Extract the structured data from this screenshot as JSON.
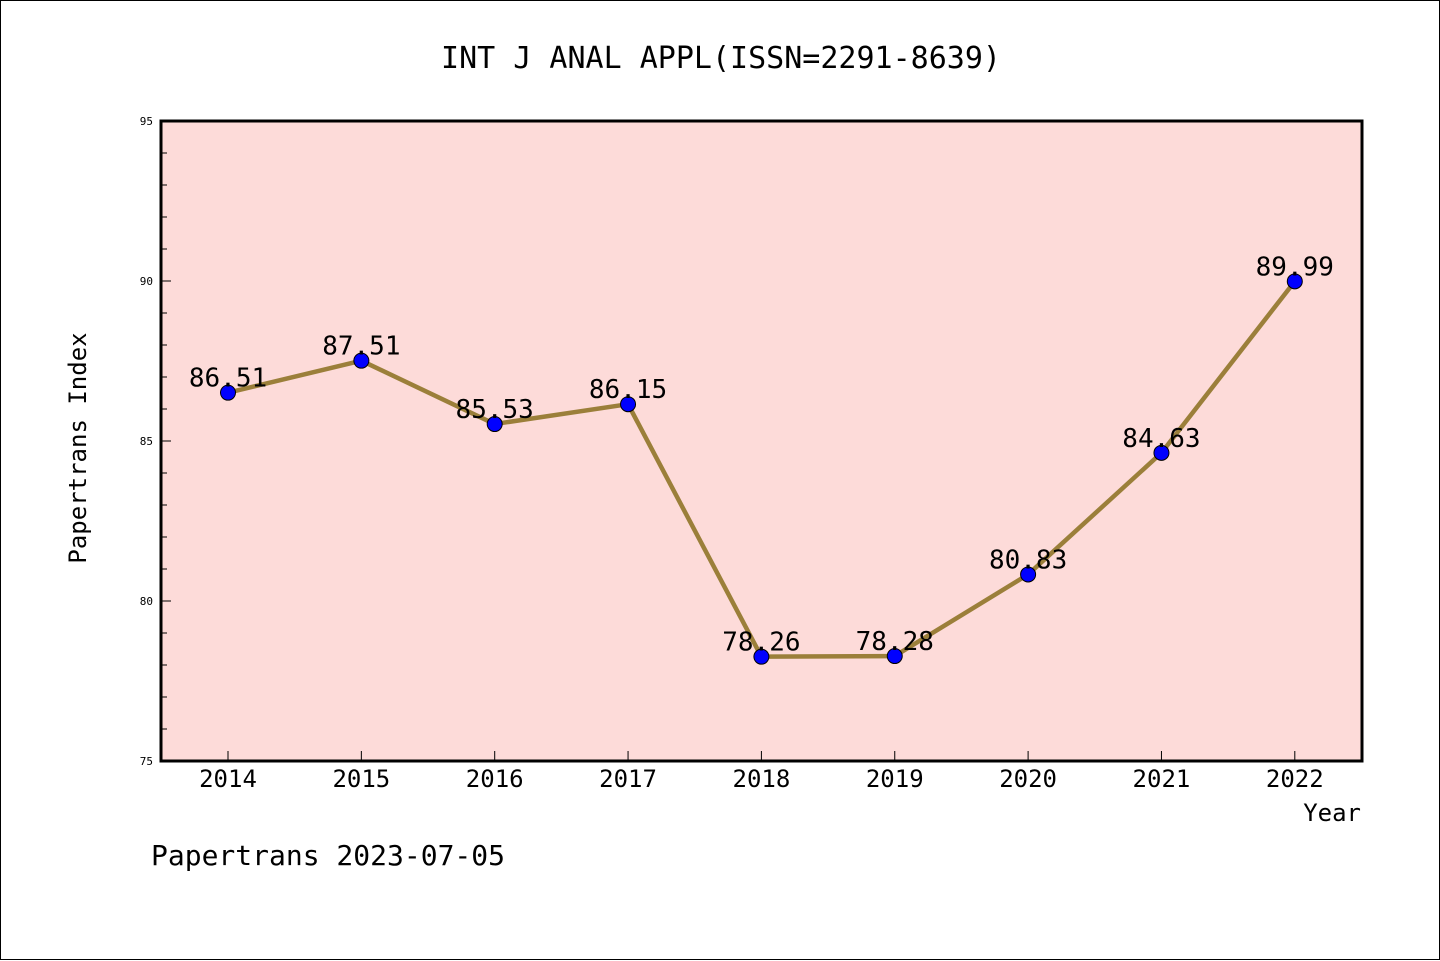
{
  "chart_data": {
    "type": "line",
    "title": "INT J ANAL APPL(ISSN=2291-8639)",
    "xlabel": "Year",
    "ylabel": "Papertrans Index",
    "categories": [
      "2014",
      "2015",
      "2016",
      "2017",
      "2018",
      "2019",
      "2020",
      "2021",
      "2022"
    ],
    "series": [
      {
        "values": [
          86.51,
          87.51,
          85.53,
          86.15,
          78.26,
          78.28,
          80.83,
          84.63,
          89.99
        ],
        "labels": [
          "86.51",
          "87.51",
          "85.53",
          "86.15",
          "78.26",
          "78.28",
          "80.83",
          "84.63",
          "89.99"
        ]
      }
    ],
    "ylim": [
      75,
      95
    ],
    "yticks": [
      "75",
      "80",
      "85",
      "90",
      "95"
    ],
    "grid": false,
    "colors": {
      "plot_background": "#fddbd9",
      "line": "#9b7f3a",
      "marker": "#0000ff",
      "axis": "#000000"
    }
  },
  "footer": {
    "text": "Papertrans 2023-07-05"
  }
}
